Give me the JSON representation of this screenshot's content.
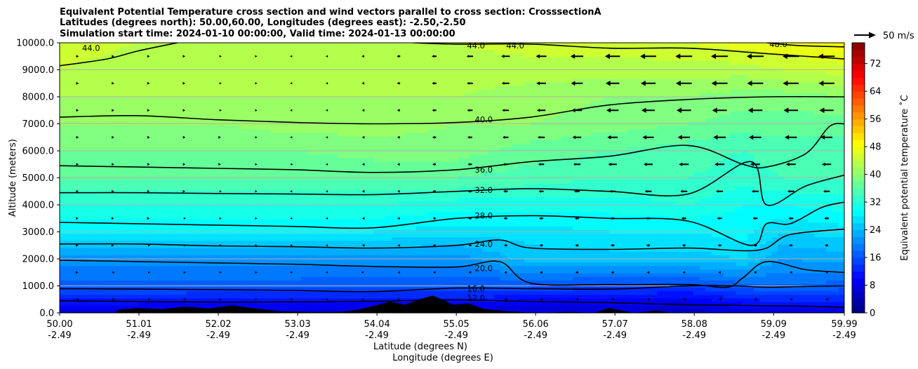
{
  "chart_data": {
    "type": "heatmap",
    "title": [
      "Equivalent Potential Temperature cross section and wind vectors parallel to cross section: CrosssectionA",
      "Latitudes (degrees north): 50.00,60.00, Longitudes (degrees east): -2.50,-2.50",
      "Simulation start time: 2024-01-10 00:00:00, Valid time: 2024-01-13 00:00:00"
    ],
    "ylabel": "Altitude (meters)",
    "xlabel": "Latitude (degrees N)",
    "xlabel2": "Longitude (degrees E)",
    "ylim": [
      0,
      10000
    ],
    "xlim": [
      50.0,
      59.99
    ],
    "grid": "horizontal",
    "yticks": [
      {
        "value": 0,
        "label": "0.0"
      },
      {
        "value": 1000,
        "label": "1000.0"
      },
      {
        "value": 2000,
        "label": "2000.0"
      },
      {
        "value": 3000,
        "label": "3000.0"
      },
      {
        "value": 4000,
        "label": "4000.0"
      },
      {
        "value": 5000,
        "label": "5000.0"
      },
      {
        "value": 6000,
        "label": "6000.0"
      },
      {
        "value": 7000,
        "label": "7000.0"
      },
      {
        "value": 8000,
        "label": "8000.0"
      },
      {
        "value": 9000,
        "label": "9000.0"
      },
      {
        "value": 10000,
        "label": "10000.0"
      }
    ],
    "xticks": [
      {
        "value": 50.0,
        "lat": "50.00",
        "lon": "-2.49"
      },
      {
        "value": 51.01,
        "lat": "51.01",
        "lon": "-2.49"
      },
      {
        "value": 52.02,
        "lat": "52.02",
        "lon": "-2.49"
      },
      {
        "value": 53.03,
        "lat": "53.03",
        "lon": "-2.49"
      },
      {
        "value": 54.04,
        "lat": "54.04",
        "lon": "-2.49"
      },
      {
        "value": 55.05,
        "lat": "55.05",
        "lon": "-2.49"
      },
      {
        "value": 56.06,
        "lat": "56.06",
        "lon": "-2.49"
      },
      {
        "value": 57.07,
        "lat": "57.07",
        "lon": "-2.49"
      },
      {
        "value": 58.08,
        "lat": "58.08",
        "lon": "-2.49"
      },
      {
        "value": 59.09,
        "lat": "59.09",
        "lon": "-2.49"
      },
      {
        "value": 59.99,
        "lat": "59.99",
        "lon": "-2.49"
      }
    ],
    "colorbar": {
      "label": "Equivalent potential temperature ˚C",
      "range": [
        0,
        78
      ],
      "ticks": [
        0,
        8,
        16,
        24,
        32,
        40,
        48,
        56,
        64,
        72
      ]
    },
    "quiver_key": {
      "label": "50 m/s",
      "speed": 50
    },
    "contours": [
      {
        "level": 12,
        "label": "12.0",
        "points": [
          [
            50.0,
            450
          ],
          [
            51,
            420
          ],
          [
            52,
            400
          ],
          [
            53,
            410
          ],
          [
            54,
            430
          ],
          [
            55.05,
            480
          ],
          [
            56,
            420
          ],
          [
            57,
            380
          ],
          [
            58,
            300
          ],
          [
            59.5,
            250
          ],
          [
            59.99,
            200
          ]
        ]
      },
      {
        "level": 16,
        "label": "16.0",
        "points": [
          [
            50.0,
            900
          ],
          [
            51,
            880
          ],
          [
            52,
            860
          ],
          [
            53,
            830
          ],
          [
            54,
            790
          ],
          [
            55.05,
            920
          ],
          [
            56,
            900
          ],
          [
            57,
            880
          ],
          [
            58,
            1000
          ],
          [
            58.6,
            1000
          ],
          [
            59,
            950
          ],
          [
            59.5,
            980
          ],
          [
            59.99,
            1000
          ]
        ]
      },
      {
        "level": 20,
        "label": "20.0",
        "points": [
          [
            50.0,
            1950
          ],
          [
            51,
            1900
          ],
          [
            52,
            1850
          ],
          [
            53,
            1800
          ],
          [
            54,
            1720
          ],
          [
            55.05,
            1700
          ],
          [
            55.6,
            1900
          ],
          [
            56,
            1100
          ],
          [
            57,
            1050
          ],
          [
            58,
            1050
          ],
          [
            58.5,
            950
          ],
          [
            58.7,
            1300
          ],
          [
            59,
            1900
          ],
          [
            59.5,
            1600
          ],
          [
            59.99,
            1500
          ]
        ]
      },
      {
        "level": 24,
        "label": "24.0",
        "points": [
          [
            50.0,
            2550
          ],
          [
            51,
            2550
          ],
          [
            52,
            2480
          ],
          [
            53,
            2450
          ],
          [
            54,
            2400
          ],
          [
            55.05,
            2500
          ],
          [
            55.6,
            2700
          ],
          [
            56,
            2400
          ],
          [
            57,
            2350
          ],
          [
            58,
            2400
          ],
          [
            58.7,
            2300
          ],
          [
            59,
            2400
          ],
          [
            59.3,
            2900
          ],
          [
            59.99,
            3100
          ]
        ]
      },
      {
        "level": 28,
        "label": "28.0",
        "points": [
          [
            50.0,
            3350
          ],
          [
            51,
            3300
          ],
          [
            52,
            3250
          ],
          [
            53,
            3200
          ],
          [
            54,
            3150
          ],
          [
            55.05,
            3500
          ],
          [
            56,
            3600
          ],
          [
            57,
            3500
          ],
          [
            58,
            3400
          ],
          [
            58.8,
            2500
          ],
          [
            59,
            3300
          ],
          [
            59.3,
            3300
          ],
          [
            59.7,
            3900
          ],
          [
            59.99,
            4100
          ]
        ]
      },
      {
        "level": 32,
        "label": "32.0",
        "points": [
          [
            50.0,
            4450
          ],
          [
            51,
            4450
          ],
          [
            52,
            4420
          ],
          [
            53,
            4400
          ],
          [
            54,
            4380
          ],
          [
            55.05,
            4500
          ],
          [
            56,
            4600
          ],
          [
            57,
            4500
          ],
          [
            58,
            4400
          ],
          [
            58.8,
            5600
          ],
          [
            59,
            4000
          ],
          [
            59.5,
            4700
          ],
          [
            59.99,
            5100
          ]
        ]
      },
      {
        "level": 36,
        "label": "36.0",
        "points": [
          [
            50.0,
            5450
          ],
          [
            51,
            5400
          ],
          [
            52,
            5350
          ],
          [
            53,
            5300
          ],
          [
            54,
            5200
          ],
          [
            55.05,
            5300
          ],
          [
            56,
            5600
          ],
          [
            57,
            5800
          ],
          [
            58,
            6200
          ],
          [
            58.7,
            5500
          ],
          [
            59,
            5400
          ],
          [
            59.5,
            5900
          ],
          [
            59.8,
            6900
          ],
          [
            59.99,
            7000
          ]
        ]
      },
      {
        "level": 40,
        "label": "40.0",
        "points": [
          [
            50.0,
            7250
          ],
          [
            51,
            7300
          ],
          [
            52,
            7150
          ],
          [
            53,
            7050
          ],
          [
            54,
            7000
          ],
          [
            55.05,
            7050
          ],
          [
            56,
            7250
          ],
          [
            57,
            7700
          ],
          [
            58,
            7900
          ],
          [
            59,
            8000
          ],
          [
            59.99,
            8000
          ]
        ]
      },
      {
        "level": 44,
        "label": "44.0",
        "points": [
          [
            50.0,
            9150
          ],
          [
            50.6,
            9400
          ],
          [
            51,
            9700
          ],
          [
            51.5,
            10000
          ]
        ]
      },
      {
        "level": 44,
        "label": "44.0",
        "points": [
          [
            54.5,
            10000
          ],
          [
            55.05,
            9950
          ],
          [
            56,
            9950
          ],
          [
            57,
            9800
          ],
          [
            58,
            9800
          ],
          [
            59,
            9600
          ],
          [
            59.99,
            9400
          ]
        ]
      },
      {
        "level": 48,
        "label": "48.0",
        "points": [
          [
            59.0,
            10000
          ],
          [
            59.4,
            9900
          ],
          [
            59.99,
            9850
          ]
        ]
      }
    ],
    "contour_labels": [
      {
        "text": "44.0",
        "x": 50.4,
        "y": 9800
      },
      {
        "text": "44.0",
        "x": 55.3,
        "y": 9900
      },
      {
        "text": "44.0",
        "x": 55.8,
        "y": 9900
      },
      {
        "text": "48.0",
        "x": 59.15,
        "y": 9950
      },
      {
        "text": "40.0",
        "x": 55.4,
        "y": 7150
      },
      {
        "text": "36.0",
        "x": 55.4,
        "y": 5300
      },
      {
        "text": "32.0",
        "x": 55.4,
        "y": 4550
      },
      {
        "text": "28.0",
        "x": 55.4,
        "y": 3600
      },
      {
        "text": "24.0",
        "x": 55.4,
        "y": 2550
      },
      {
        "text": "20.0",
        "x": 55.4,
        "y": 1650
      },
      {
        "text": "16.0",
        "x": 55.3,
        "y": 900
      },
      {
        "text": "12.0",
        "x": 55.3,
        "y": 550
      }
    ],
    "theta_field": {
      "x": [
        50.0,
        51.0,
        52.0,
        53.0,
        54.0,
        55.05,
        56.0,
        57.0,
        58.0,
        58.7,
        59.2,
        59.99
      ],
      "y": [
        0,
        500,
        1000,
        2000,
        3000,
        4000,
        5000,
        6000,
        7000,
        8000,
        9000,
        10000
      ],
      "values": [
        [
          6,
          6,
          6,
          6,
          6,
          6,
          6,
          6,
          5,
          6,
          7,
          7
        ],
        [
          12,
          12,
          11,
          11,
          11,
          12,
          10,
          10,
          9,
          12,
          13,
          13
        ],
        [
          17,
          17,
          17,
          17,
          16,
          16,
          16,
          15,
          15,
          17,
          18,
          17
        ],
        [
          21,
          21,
          21,
          21,
          21,
          21,
          25,
          25,
          25,
          26,
          22,
          23
        ],
        [
          28,
          28,
          28,
          28,
          28,
          27,
          27,
          28,
          28,
          29,
          26,
          27
        ],
        [
          32,
          32,
          32,
          32,
          32,
          31,
          31,
          31,
          32,
          30,
          30,
          31
        ],
        [
          36,
          36,
          36,
          36,
          36,
          36,
          35,
          34,
          34,
          33,
          34,
          34
        ],
        [
          38,
          38,
          38,
          38,
          39,
          39,
          37,
          36,
          35,
          34,
          35,
          35
        ],
        [
          40,
          40,
          40,
          41,
          41,
          40,
          40,
          39,
          38,
          37,
          37,
          37
        ],
        [
          42,
          42,
          42,
          42,
          42,
          42,
          41,
          40,
          40,
          39,
          39,
          40
        ],
        [
          44,
          43,
          43,
          43,
          43,
          43,
          43,
          43,
          43,
          43,
          44,
          45
        ],
        [
          45,
          44,
          44,
          44,
          44,
          44,
          45,
          45,
          46,
          47,
          48,
          49
        ]
      ]
    },
    "wind_u": {
      "x": [
        50.0,
        52.0,
        54.0,
        55.05,
        56.0,
        57.0,
        58.0,
        59.0,
        59.99
      ],
      "y": [
        0,
        2000,
        4000,
        6000,
        8000,
        10000
      ],
      "values": [
        [
          3,
          2,
          -2,
          -4,
          -4,
          -4,
          -3,
          -3,
          -3
        ],
        [
          4,
          2,
          -4,
          -6,
          -7,
          -8,
          -6,
          -7,
          -6
        ],
        [
          5,
          3,
          -4,
          -8,
          -10,
          -12,
          -13,
          -13,
          -12
        ],
        [
          6,
          4,
          -4,
          -10,
          -14,
          -22,
          -26,
          -26,
          -24
        ],
        [
          6,
          3,
          -5,
          -12,
          -20,
          -30,
          -36,
          -36,
          -35
        ],
        [
          6,
          3,
          -6,
          -14,
          -24,
          -36,
          -40,
          -40,
          -38
        ]
      ]
    },
    "terrain": [
      [
        50.0,
        0
      ],
      [
        50.7,
        0
      ],
      [
        50.75,
        120
      ],
      [
        51.0,
        180
      ],
      [
        51.3,
        140
      ],
      [
        51.6,
        230
      ],
      [
        51.9,
        160
      ],
      [
        52.2,
        280
      ],
      [
        52.5,
        160
      ],
      [
        52.8,
        60
      ],
      [
        53.2,
        30
      ],
      [
        53.6,
        40
      ],
      [
        53.8,
        120
      ],
      [
        54.0,
        260
      ],
      [
        54.2,
        420
      ],
      [
        54.4,
        300
      ],
      [
        54.6,
        520
      ],
      [
        54.75,
        640
      ],
      [
        54.9,
        460
      ],
      [
        55.0,
        300
      ],
      [
        55.2,
        350
      ],
      [
        55.4,
        150
      ],
      [
        55.7,
        60
      ],
      [
        56.1,
        0
      ],
      [
        56.5,
        40
      ],
      [
        56.8,
        0
      ],
      [
        57.0,
        180
      ],
      [
        57.3,
        0
      ],
      [
        57.6,
        80
      ],
      [
        57.8,
        0
      ],
      [
        59.99,
        0
      ]
    ]
  }
}
